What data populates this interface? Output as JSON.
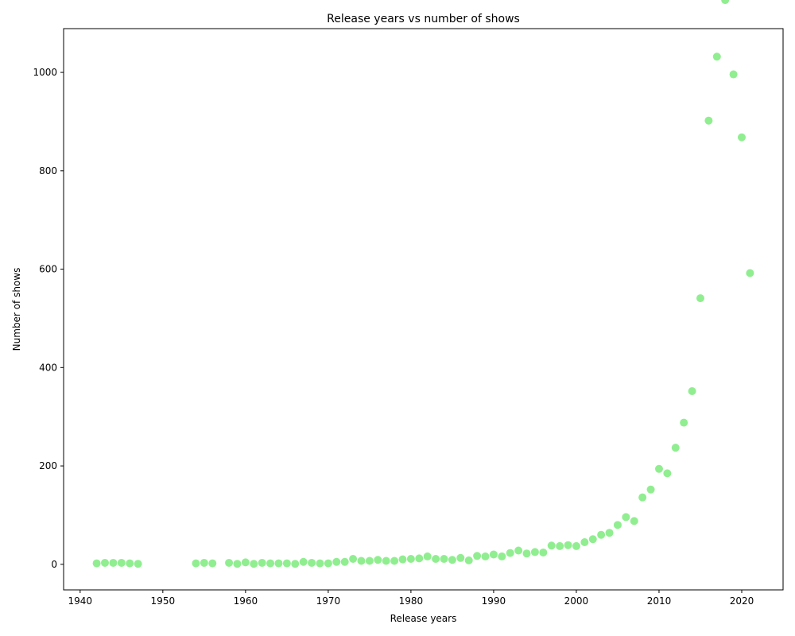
{
  "chart_data": {
    "type": "scatter",
    "title": "Release years vs number of shows",
    "xlabel": "Release years",
    "ylabel": "Number of shows",
    "xlim": [
      1938,
      2025
    ],
    "ylim": [
      -52,
      1089
    ],
    "xticks": [
      1940,
      1950,
      1960,
      1970,
      1980,
      1990,
      2000,
      2010,
      2020
    ],
    "yticks": [
      0,
      200,
      400,
      600,
      800,
      1000
    ],
    "marker_color": "#90ee90",
    "grid": false,
    "legend": false,
    "x": [
      1942,
      1943,
      1944,
      1945,
      1946,
      1947,
      1954,
      1955,
      1956,
      1958,
      1959,
      1960,
      1961,
      1962,
      1963,
      1964,
      1965,
      1966,
      1967,
      1968,
      1969,
      1970,
      1971,
      1972,
      1973,
      1974,
      1975,
      1976,
      1977,
      1978,
      1979,
      1980,
      1981,
      1982,
      1983,
      1984,
      1985,
      1986,
      1987,
      1988,
      1989,
      1990,
      1991,
      1992,
      1993,
      1994,
      1995,
      1996,
      1997,
      1998,
      1999,
      2000,
      2001,
      2002,
      2003,
      2004,
      2005,
      2006,
      2007,
      2008,
      2009,
      2010,
      2011,
      2012,
      2013,
      2014,
      2015,
      2016,
      2017,
      2018,
      2019,
      2020,
      2021
    ],
    "y": [
      2,
      3,
      3,
      3,
      2,
      1,
      2,
      3,
      2,
      3,
      1,
      4,
      1,
      3,
      2,
      2,
      2,
      1,
      5,
      3,
      2,
      2,
      5,
      5,
      11,
      7,
      7,
      9,
      7,
      7,
      10,
      11,
      12,
      16,
      11,
      11,
      9,
      13,
      8,
      17,
      16,
      20,
      16,
      23,
      28,
      22,
      25,
      24,
      38,
      37,
      39,
      37,
      45,
      51,
      60,
      64,
      80,
      96,
      88,
      136,
      152,
      194,
      185,
      237,
      288,
      352,
      541,
      902,
      1032,
      1147,
      996,
      868,
      592
    ]
  }
}
